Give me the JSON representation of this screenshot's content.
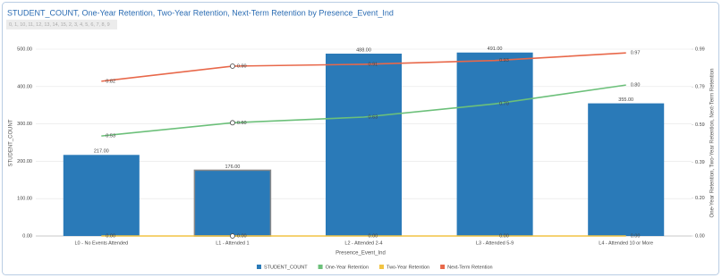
{
  "chart_data": {
    "type": "bar",
    "title": "STUDENT_COUNT, One-Year Retention, Two-Year Retention, Next-Term Retention by Presence_Event_Ind",
    "subtitle": "0, 1, 10, 11, 12, 13, 14, 15, 2, 3, 4, 5, 6, 7, 8, 9",
    "x_label": "Presence_Event_Ind",
    "y_label": "STUDENT_COUNT",
    "y2_label": "One-Year Retention, Two-Year Retention, Next-Term Retention",
    "categories": [
      "L0 - No Events Attended",
      "L1 - Attended 1",
      "L2 - Attended 2-4",
      "L3 - Attended 5-9",
      "L4 - Attended 10 or More"
    ],
    "series": [
      {
        "name": "STUDENT_COUNT",
        "type": "bar",
        "color": "#2a7ab8",
        "values": [
          217,
          176,
          488,
          491,
          355
        ],
        "value_labels": [
          "217.00",
          "176.00",
          "488.00",
          "491.00",
          "355.00"
        ]
      },
      {
        "name": "One-Year Retention",
        "type": "line",
        "axis": "y2",
        "color": "#6cc07a",
        "values": [
          0.53,
          0.6,
          0.63,
          0.7,
          0.8
        ],
        "value_labels": [
          "0.53",
          "0.60",
          "0.63",
          "0.70",
          "0.80"
        ]
      },
      {
        "name": "Two-Year Retention",
        "type": "line",
        "axis": "y2",
        "color": "#f2c443",
        "values": [
          0,
          0,
          0,
          0,
          0
        ],
        "value_labels": [
          "0.00",
          "0.00",
          "0.00",
          "0.00",
          "0.00"
        ]
      },
      {
        "name": "Next-Term Retention",
        "type": "line",
        "axis": "y2",
        "color": "#e8684a",
        "values": [
          0.82,
          0.9,
          0.91,
          0.93,
          0.97
        ],
        "value_labels": [
          "0.82",
          "0.90",
          "0.91",
          "0.93",
          "0.97"
        ]
      }
    ],
    "ylim": [
      0,
      500
    ],
    "yticks": [
      {
        "value": 0,
        "label": "0.00"
      },
      {
        "value": 100,
        "label": "100.00"
      },
      {
        "value": 200,
        "label": "200.00"
      },
      {
        "value": 300,
        "label": "300.00"
      },
      {
        "value": 400,
        "label": "400.00"
      },
      {
        "value": 500,
        "label": "500.00"
      }
    ],
    "y2lim": [
      0,
      0.99
    ],
    "y2ticks": [
      {
        "value": 0,
        "label": "0.00"
      },
      {
        "value": 0.2,
        "label": "0.20"
      },
      {
        "value": 0.39,
        "label": "0.39"
      },
      {
        "value": 0.59,
        "label": "0.59"
      },
      {
        "value": 0.79,
        "label": "0.79"
      },
      {
        "value": 0.99,
        "label": "0.99"
      }
    ],
    "grid": true,
    "legend": "bottom"
  }
}
